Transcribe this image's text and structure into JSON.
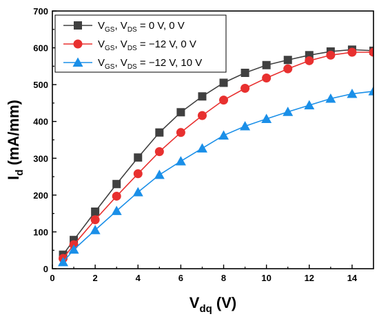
{
  "chart_data": {
    "type": "line",
    "xlabel": {
      "main": "V",
      "sub": "dq",
      "unit": " (V)"
    },
    "ylabel": {
      "main": "I",
      "sub": "d",
      "unit": " (mA/mm)"
    },
    "xlim": [
      0,
      15
    ],
    "ylim": [
      0,
      700
    ],
    "xticks": [
      0,
      2,
      4,
      6,
      8,
      10,
      12,
      14
    ],
    "yticks": [
      0,
      100,
      200,
      300,
      400,
      500,
      600,
      700
    ],
    "grid": false,
    "legend_position": "top-left",
    "series": [
      {
        "name": {
          "a": "V",
          "a_sub": "GS",
          "b": ", V",
          "b_sub": "DS",
          "rest": " = 0 V, 0 V"
        },
        "color": "#404040",
        "marker": "square",
        "x": [
          0.5,
          1,
          2,
          3,
          4,
          5,
          6,
          7,
          8,
          9,
          10,
          11,
          12,
          13,
          14,
          15
        ],
        "y": [
          38,
          78,
          155,
          230,
          302,
          370,
          425,
          468,
          505,
          532,
          553,
          567,
          580,
          590,
          595,
          592
        ]
      },
      {
        "name": {
          "a": "V",
          "a_sub": "GS",
          "b": ", V",
          "b_sub": "DS",
          "rest": " = −12 V, 0 V"
        },
        "color": "#e8302f",
        "marker": "circle",
        "x": [
          0.5,
          1,
          2,
          3,
          4,
          5,
          6,
          7,
          8,
          9,
          10,
          11,
          12,
          13,
          14,
          15
        ],
        "y": [
          28,
          65,
          133,
          197,
          258,
          318,
          370,
          416,
          458,
          490,
          518,
          543,
          565,
          580,
          588,
          588
        ]
      },
      {
        "name": {
          "a": "V",
          "a_sub": "GS",
          "b": ", V",
          "b_sub": "DS",
          "rest": " = −12 V, 10 V"
        },
        "color": "#1a8fe8",
        "marker": "triangle",
        "x": [
          0.5,
          1,
          2,
          3,
          4,
          5,
          6,
          7,
          8,
          9,
          10,
          11,
          12,
          13,
          14,
          15
        ],
        "y": [
          18,
          52,
          105,
          157,
          208,
          255,
          292,
          327,
          362,
          387,
          407,
          426,
          444,
          462,
          475,
          482
        ]
      }
    ]
  }
}
